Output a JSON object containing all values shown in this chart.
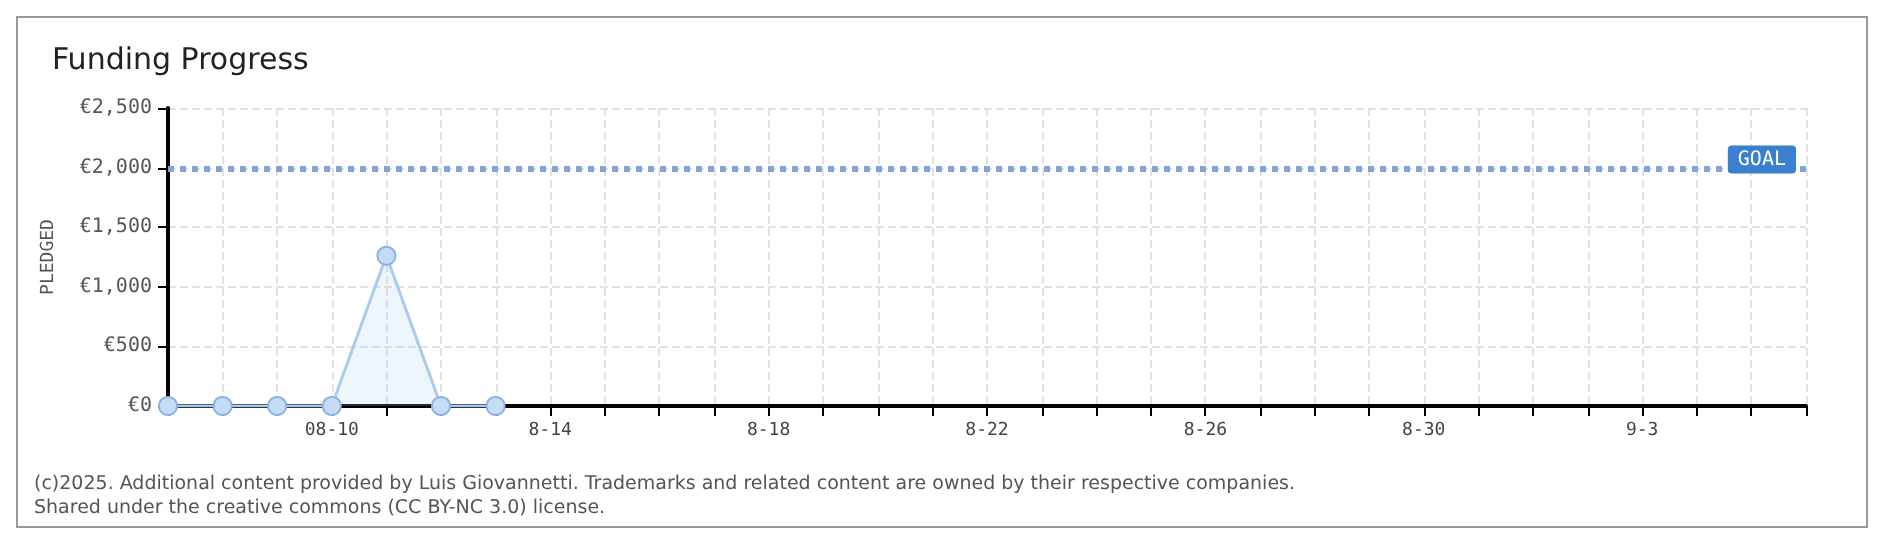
{
  "chart_data": {
    "type": "area",
    "title": "Funding Progress",
    "ylabel": "PLEDGED",
    "categories": [
      null,
      null,
      null,
      "08-10",
      null,
      null,
      null,
      "8-14",
      null,
      null,
      null,
      "8-18",
      null,
      null,
      null,
      "8-22",
      null,
      null,
      null,
      "8-26",
      null,
      null,
      null,
      "8-30",
      null,
      null,
      null,
      "9-3",
      null,
      null,
      null
    ],
    "series": [
      {
        "color": "#a9cbf2",
        "values": [
          0,
          0,
          0,
          0,
          1260,
          0,
          0,
          null,
          null,
          null,
          null,
          null,
          null,
          null,
          null,
          null,
          null,
          null,
          null,
          null,
          null,
          null,
          null,
          null,
          null,
          null,
          null,
          null,
          null,
          null,
          null
        ]
      }
    ],
    "ylim": [
      0,
      2500
    ],
    "yticks": [
      {
        "value": 0,
        "label": "€0"
      },
      {
        "value": 500,
        "label": "€500"
      },
      {
        "value": 1000,
        "label": "€1,000"
      },
      {
        "value": 1500,
        "label": "€1,500"
      },
      {
        "value": 2000,
        "label": "€2,000"
      },
      {
        "value": 2500,
        "label": "€2,500"
      }
    ],
    "ref_lines": [
      {
        "axis": "y",
        "value": 2000,
        "label": "GOAL",
        "color": "#7fa6d3",
        "line_style": "dotted"
      }
    ],
    "grid": true,
    "marker": "circle",
    "annotations": [
      "(c)2025. Additional content provided by Luis Giovannetti. Trademarks and related content are owned by their respective companies.",
      "Shared under the creative commons (CC BY-NC 3.0) license."
    ]
  }
}
